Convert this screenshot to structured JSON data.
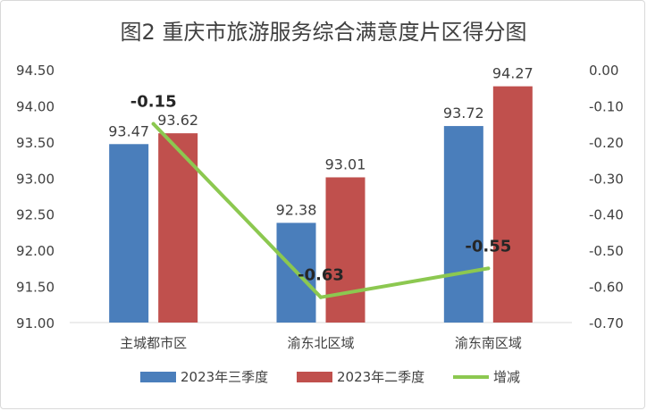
{
  "chart_data": {
    "type": "bar",
    "title": "图2 重庆市旅游服务综合满意度片区得分图",
    "categories": [
      "主城都市区",
      "渝东北区域",
      "渝东南区域"
    ],
    "series": [
      {
        "name": "2023年三季度",
        "type": "bar",
        "axis": "left",
        "color": "#4a7ebb",
        "values": [
          93.47,
          92.38,
          93.72
        ],
        "labels": [
          "93.47",
          "92.38",
          "93.72"
        ]
      },
      {
        "name": "2023年二季度",
        "type": "bar",
        "axis": "left",
        "color": "#c0504d",
        "values": [
          93.62,
          93.01,
          94.27
        ],
        "labels": [
          "93.62",
          "93.01",
          "94.27"
        ]
      },
      {
        "name": "增减",
        "type": "line",
        "axis": "right",
        "color": "#8cc850",
        "values": [
          -0.15,
          -0.63,
          -0.55
        ],
        "labels": [
          "-0.15",
          "-0.63",
          "-0.55"
        ]
      }
    ],
    "y_left": {
      "min": 91.0,
      "max": 94.5,
      "ticks": [
        "91.00",
        "91.50",
        "92.00",
        "92.50",
        "93.00",
        "93.50",
        "94.00",
        "94.50"
      ]
    },
    "y_right": {
      "min": -0.7,
      "max": 0.0,
      "ticks": [
        "-0.70",
        "-0.60",
        "-0.50",
        "-0.40",
        "-0.30",
        "-0.20",
        "-0.10",
        "0.00"
      ]
    },
    "grid": false,
    "legend_position": "bottom"
  }
}
